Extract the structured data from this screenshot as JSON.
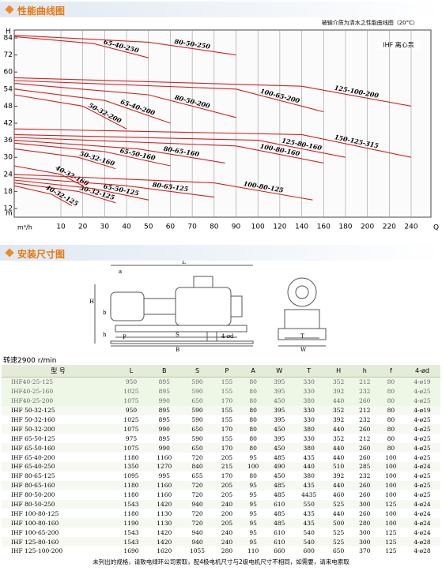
{
  "header": {
    "title": "性能曲线图",
    "subtitle": "被输介质为清水之性能曲线图（20°C）",
    "series_label": "IHF 离心泵"
  },
  "chart_data": {
    "type": "line",
    "y_label": "H",
    "y_unit": "m",
    "x_label": "Q",
    "x_unit": "m³/h",
    "xlim": [
      0,
      260
    ],
    "xticks": [
      10,
      20,
      30,
      40,
      50,
      60,
      70,
      80,
      90,
      100,
      120,
      140,
      160,
      180,
      200,
      220,
      240
    ],
    "ylim": [
      8,
      90
    ],
    "yticks": [
      12,
      18,
      24,
      30,
      36,
      42,
      48,
      54,
      60,
      72,
      84
    ],
    "grid": true,
    "color": "#d42020",
    "series": [
      {
        "name": "65-40-250",
        "x": [
          0,
          25,
          50
        ],
        "values": [
          85,
          80,
          70
        ]
      },
      {
        "name": "80-50-250",
        "x": [
          0,
          50,
          90
        ],
        "values": [
          86,
          81,
          72
        ]
      },
      {
        "name": "50-32-200",
        "x": [
          0,
          20,
          40
        ],
        "values": [
          52,
          48,
          40
        ]
      },
      {
        "name": "65-40-200",
        "x": [
          0,
          30,
          60
        ],
        "values": [
          54,
          50,
          42
        ]
      },
      {
        "name": "80-50-200",
        "x": [
          0,
          50,
          90
        ],
        "values": [
          56,
          52,
          44
        ]
      },
      {
        "name": "100-65-200",
        "x": [
          0,
          90,
          160
        ],
        "values": [
          57,
          54,
          46
        ]
      },
      {
        "name": "125-100-200",
        "x": [
          0,
          140,
          240
        ],
        "values": [
          58,
          55,
          48
        ]
      },
      {
        "name": "50-32-160",
        "x": [
          0,
          18,
          35
        ],
        "values": [
          33,
          30,
          26
        ]
      },
      {
        "name": "65-50-160",
        "x": [
          0,
          30,
          60
        ],
        "values": [
          35,
          32,
          27
        ]
      },
      {
        "name": "80-65-160",
        "x": [
          0,
          45,
          85
        ],
        "values": [
          36,
          33,
          28
        ]
      },
      {
        "name": "100-80-160",
        "x": [
          0,
          90,
          160
        ],
        "values": [
          37,
          34,
          28
        ]
      },
      {
        "name": "125-80-160",
        "x": [
          0,
          100,
          180
        ],
        "values": [
          38,
          36,
          30
        ]
      },
      {
        "name": "150-125-315",
        "x": [
          0,
          140,
          240
        ],
        "values": [
          40,
          38,
          30
        ]
      },
      {
        "name": "40-32-160",
        "x": [
          0,
          10,
          20
        ],
        "values": [
          27,
          24,
          20
        ]
      },
      {
        "name": "50-32-125",
        "x": [
          0,
          18,
          35
        ],
        "values": [
          21,
          18,
          14
        ]
      },
      {
        "name": "65-50-125",
        "x": [
          0,
          25,
          50
        ],
        "values": [
          22,
          19,
          15
        ]
      },
      {
        "name": "80-65-125",
        "x": [
          0,
          40,
          80
        ],
        "values": [
          23,
          20,
          16
        ]
      },
      {
        "name": "100-80-125",
        "x": [
          0,
          80,
          150
        ],
        "values": [
          24,
          21,
          15
        ]
      },
      {
        "name": "40-32-125",
        "x": [
          0,
          8,
          15
        ],
        "values": [
          20,
          17,
          13
        ]
      }
    ]
  },
  "section2": {
    "title": "安装尺寸图"
  },
  "diagram": {
    "labels": [
      "L",
      "a",
      "b",
      "H",
      "h",
      "P",
      "S",
      "4-ød",
      "B",
      "T",
      "W"
    ]
  },
  "speed": "转速2900 r/min",
  "table": {
    "header": [
      "型 号",
      "L",
      "B",
      "S",
      "P",
      "A",
      "W",
      "T",
      "H",
      "h",
      "f",
      "4-ød"
    ],
    "rows": [
      [
        "IHF40-25-125",
        "950",
        "895",
        "590",
        "155",
        "80",
        "395",
        "330",
        "352",
        "212",
        "80",
        "4-ø19"
      ],
      [
        "IHF40-25-160",
        "1025",
        "895",
        "590",
        "155",
        "80",
        "395",
        "330",
        "392",
        "232",
        "80",
        "4-ø25"
      ],
      [
        "IHF40-25-200",
        "1075",
        "990",
        "650",
        "170",
        "80",
        "450",
        "380",
        "440",
        "260",
        "80",
        "4-ø25"
      ],
      [
        "IHF 50-32-125",
        "950",
        "895",
        "590",
        "155",
        "80",
        "395",
        "330",
        "352",
        "212",
        "80",
        "4-ø19"
      ],
      [
        "IHF 50-32-160",
        "1025",
        "895",
        "590",
        "155",
        "80",
        "395",
        "330",
        "392",
        "232",
        "80",
        "4-ø25"
      ],
      [
        "IHF 50-32-200",
        "1075",
        "990",
        "650",
        "170",
        "80",
        "450",
        "380",
        "440",
        "260",
        "80",
        "4-ø25"
      ],
      [
        "IHF 65-50-125",
        "975",
        "895",
        "590",
        "155",
        "80",
        "395",
        "330",
        "352",
        "212",
        "80",
        "4-ø25"
      ],
      [
        "IHF 65-50-160",
        "1075",
        "990",
        "650",
        "170",
        "80",
        "450",
        "380",
        "440",
        "260",
        "80",
        "4-ø25"
      ],
      [
        "IHF 65-40-200",
        "1180",
        "1160",
        "720",
        "205",
        "95",
        "485",
        "435",
        "440",
        "260",
        "100",
        "4-ø25"
      ],
      [
        "IHF 65-40-250",
        "1350",
        "1270",
        "840",
        "215",
        "100",
        "490",
        "440",
        "510",
        "285",
        "100",
        "4-ø24"
      ],
      [
        "IHF 80-65-125",
        "1095",
        "995",
        "655",
        "170",
        "80",
        "450",
        "380",
        "392",
        "232",
        "100",
        "4-ø25"
      ],
      [
        "IHF 80-65-160",
        "1180",
        "1160",
        "720",
        "205",
        "95",
        "485",
        "435",
        "440",
        "260",
        "100",
        "4-ø25"
      ],
      [
        "IHF 80-50-200",
        "1180",
        "1160",
        "720",
        "205",
        "95",
        "485",
        "4435",
        "460",
        "260",
        "100",
        "4-ø25"
      ],
      [
        "IHF 80-50-250",
        "1543",
        "1420",
        "940",
        "240",
        "95",
        "610",
        "550",
        "525",
        "300",
        "125",
        "4-ø24"
      ],
      [
        "IHF 100-80-125",
        "1180",
        "1130",
        "720",
        "200",
        "95",
        "485",
        "435",
        "440",
        "260",
        "100",
        "4-ø24"
      ],
      [
        "IHF 100-80-160",
        "1190",
        "1130",
        "720",
        "205",
        "95",
        "485",
        "435",
        "500",
        "280",
        "100",
        "4-ø24"
      ],
      [
        "IHF 100-65-200",
        "1543",
        "1420",
        "940",
        "240",
        "95",
        "610",
        "540",
        "525",
        "300",
        "125",
        "4-ø24"
      ],
      [
        "IHF 125-80-160",
        "1543",
        "1420",
        "940",
        "240",
        "95",
        "610",
        "540",
        "525",
        "300",
        "125",
        "4-ø28"
      ],
      [
        "IHF 125-100-200",
        "1690",
        "1620",
        "1055",
        "280",
        "110",
        "660",
        "600",
        "650",
        "370",
        "125",
        "4-ø28"
      ]
    ]
  },
  "footnote": "未列出的规格，请致电绿环公司索取，配4极电机尺寸与2级电机尺寸不相同，如需要，请来电索取"
}
